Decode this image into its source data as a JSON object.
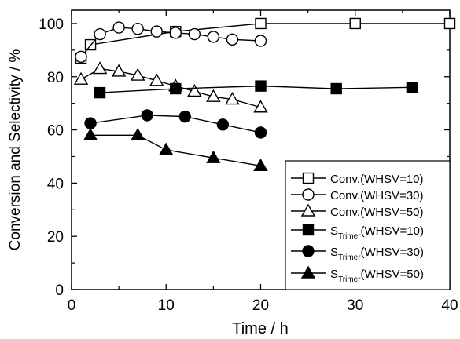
{
  "chart_data": {
    "type": "line",
    "title": "",
    "xlabel": "Time / h",
    "ylabel": "Conversion and Selectivity / %",
    "xlim": [
      0,
      40
    ],
    "ylim": [
      0,
      105
    ],
    "xticks": [
      "0",
      "10",
      "20",
      "30",
      "40"
    ],
    "yticks": [
      "0",
      "20",
      "40",
      "60",
      "80",
      "100"
    ],
    "grid": false,
    "legend_position": "bottom-right",
    "series": [
      {
        "name": "Conv.(WHSV=10)",
        "label_main": "Conv.(WHSV=10)",
        "label_sub": "",
        "label_rest": "",
        "marker": "square",
        "filled": false,
        "color": "#000000",
        "x": [
          1,
          2,
          11,
          20,
          30,
          40
        ],
        "y": [
          87,
          92,
          97,
          100,
          100,
          100
        ]
      },
      {
        "name": "Conv.(WHSV=30)",
        "label_main": "Conv.(WHSV=30)",
        "label_sub": "",
        "label_rest": "",
        "marker": "circle",
        "filled": false,
        "color": "#000000",
        "x": [
          1,
          3,
          5,
          7,
          9,
          11,
          13,
          15,
          17,
          20
        ],
        "y": [
          87.5,
          96,
          98.5,
          98,
          97,
          96.5,
          96,
          95,
          94,
          93.5
        ]
      },
      {
        "name": "Conv.(WHSV=50)",
        "label_main": "Conv.(WHSV=50)",
        "label_sub": "",
        "label_rest": "",
        "marker": "triangle",
        "filled": false,
        "color": "#000000",
        "x": [
          1,
          3,
          5,
          7,
          9,
          11,
          13,
          15,
          17,
          20
        ],
        "y": [
          79,
          83,
          82,
          80.5,
          78.5,
          76.5,
          74.5,
          72.5,
          71.5,
          68.5
        ]
      },
      {
        "name": "STrimer(WHSV=10)",
        "label_main": "S",
        "label_sub": "Trimer",
        "label_rest": "(WHSV=10)",
        "marker": "square",
        "filled": true,
        "color": "#000000",
        "x": [
          3,
          11,
          20,
          28,
          36
        ],
        "y": [
          74,
          75.5,
          76.5,
          75.5,
          76
        ]
      },
      {
        "name": "STrimer(WHSV=30)",
        "label_main": "S",
        "label_sub": "Trimer",
        "label_rest": "(WHSV=30)",
        "marker": "circle",
        "filled": true,
        "color": "#000000",
        "x": [
          2,
          8,
          12,
          16,
          20
        ],
        "y": [
          62.5,
          65.5,
          65,
          62,
          59
        ]
      },
      {
        "name": "STrimer(WHSV=50)",
        "label_main": "S",
        "label_sub": "Trimer",
        "label_rest": "(WHSV=50)",
        "marker": "triangle",
        "filled": true,
        "color": "#000000",
        "x": [
          2,
          7,
          10,
          15,
          20
        ],
        "y": [
          58,
          58,
          52.5,
          49.5,
          46.5
        ]
      }
    ]
  }
}
